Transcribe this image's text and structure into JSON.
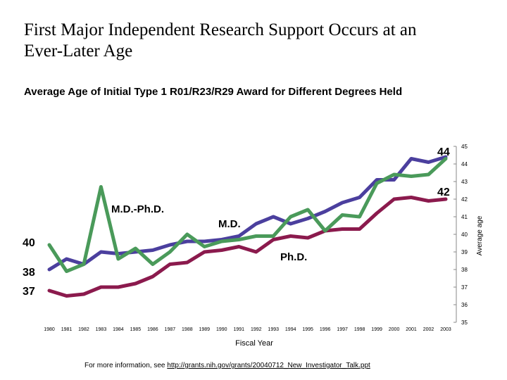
{
  "slide": {
    "title_line1": "First Major Independent Research Support Occurs at an",
    "title_line2": "Ever-Later Age",
    "subtitle": "Average Age of Initial Type 1 R01/R23/R29 Award for Different Degrees Held"
  },
  "chart_data": {
    "type": "line",
    "title": "Average Age of Initial Type 1 R01/R23/R29 Award for Different Degrees Held",
    "xlabel": "Fiscal Year",
    "ylabel": "Average age",
    "ylim": [
      35,
      45
    ],
    "yticks": [
      "35",
      "36",
      "37",
      "38",
      "39",
      "40",
      "41",
      "42",
      "43",
      "44",
      "45"
    ],
    "grid": false,
    "categories": [
      "1980",
      "1981",
      "1982",
      "1983",
      "1984",
      "1985",
      "1986",
      "1987",
      "1988",
      "1989",
      "1990",
      "1991",
      "1992",
      "1993",
      "1994",
      "1995",
      "1996",
      "1997",
      "1998",
      "1999",
      "2000",
      "2001",
      "2002",
      "2003"
    ],
    "series": [
      {
        "name": "M.D.",
        "color": "#4b3f9e",
        "values": [
          38.0,
          38.6,
          38.3,
          39.0,
          38.9,
          39.0,
          39.1,
          39.4,
          39.6,
          39.6,
          39.7,
          39.9,
          40.6,
          41.0,
          40.6,
          40.9,
          41.3,
          41.8,
          42.1,
          43.1,
          43.1,
          44.3,
          44.1,
          44.4
        ]
      },
      {
        "name": "Ph.D.",
        "color": "#8b1a4d",
        "values": [
          36.8,
          36.5,
          36.6,
          37.0,
          37.0,
          37.2,
          37.6,
          38.3,
          38.4,
          39.0,
          39.1,
          39.3,
          39.0,
          39.7,
          39.9,
          39.8,
          40.2,
          40.3,
          40.3,
          41.2,
          42.0,
          42.1,
          41.9,
          42.0
        ]
      },
      {
        "name": "M.D.-Ph.D.",
        "color": "#4a9a5a",
        "values": [
          39.4,
          37.9,
          38.3,
          42.7,
          38.6,
          39.2,
          38.3,
          39.0,
          40.0,
          39.3,
          39.6,
          39.7,
          39.9,
          39.9,
          41.0,
          41.4,
          40.2,
          41.1,
          41.0,
          42.9,
          43.4,
          43.3,
          43.4,
          44.3
        ]
      }
    ],
    "annotations": {
      "md_phd_label": "M.D.-Ph.D.",
      "md_label": "M.D.",
      "phd_label": "Ph.D.",
      "left_md_phd_value": "40",
      "left_md_value": "38",
      "left_phd_value": "37",
      "right_md_value": "44",
      "right_phd_value": "42"
    }
  },
  "footer": {
    "prefix": "For more information, see ",
    "link_text": "http://grants.nih.gov/grants/20040712_New_Investigator_Talk.ppt"
  }
}
